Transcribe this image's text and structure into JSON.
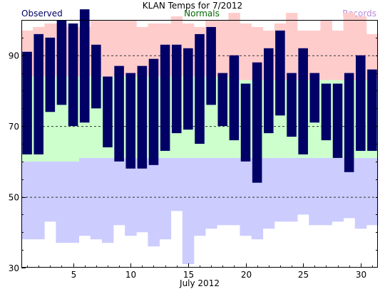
{
  "chart_data": {
    "type": "bar",
    "title": "KLAN Temps for 7/2012",
    "legend": {
      "observed": "Observed",
      "normals": "Normals",
      "records": "Records",
      "placement": "top"
    },
    "xlabel": "July 2012",
    "x_ticks": [
      "5",
      "10",
      "15",
      "20",
      "25",
      "30"
    ],
    "y_ticks": [
      "30",
      "50",
      "70",
      "90"
    ],
    "ylim": [
      30,
      100
    ],
    "xlim": [
      0.5,
      31.5
    ],
    "grid_y": [
      50,
      70,
      90
    ],
    "colors": {
      "observed": "#000066",
      "normal": "#ccffcc",
      "record_high": "#ffcccc",
      "record_low": "#ccccff"
    },
    "days": [
      1,
      2,
      3,
      4,
      5,
      6,
      7,
      8,
      9,
      10,
      11,
      12,
      13,
      14,
      15,
      16,
      17,
      18,
      19,
      20,
      21,
      22,
      23,
      24,
      25,
      26,
      27,
      28,
      29,
      30,
      31
    ],
    "series": [
      {
        "name": "Observed",
        "high": [
          91,
          96,
          95,
          100,
          99,
          103,
          93,
          84,
          87,
          85,
          87,
          89,
          93,
          93,
          92,
          96,
          98,
          85,
          90,
          82,
          88,
          92,
          97,
          85,
          92,
          85,
          82,
          82,
          85,
          90,
          86
        ],
        "low": [
          62,
          62,
          74,
          76,
          70,
          71,
          75,
          64,
          60,
          58,
          58,
          59,
          63,
          68,
          69,
          65,
          76,
          70,
          66,
          60,
          54,
          68,
          73,
          67,
          62,
          71,
          66,
          61,
          57,
          63,
          63
        ]
      },
      {
        "name": "Normals",
        "high": [
          84,
          84,
          84,
          84,
          84,
          84,
          84,
          84,
          84,
          84,
          84,
          84,
          84,
          84,
          84,
          84,
          84,
          84,
          83,
          83,
          83,
          83,
          83,
          83,
          83,
          83,
          83,
          83,
          83,
          83,
          83
        ],
        "low": [
          60,
          60,
          60,
          60,
          60,
          61,
          61,
          61,
          61,
          61,
          61,
          61,
          61,
          61,
          61,
          61,
          61,
          61,
          61,
          61,
          61,
          61,
          61,
          61,
          61,
          61,
          61,
          61,
          61,
          61,
          61
        ]
      },
      {
        "name": "Records",
        "high": [
          97,
          98,
          99,
          99,
          98,
          98,
          100,
          100,
          100,
          100,
          98,
          99,
          99,
          101,
          99,
          98,
          100,
          100,
          102,
          99,
          98,
          97,
          99,
          102,
          97,
          97,
          100,
          97,
          102,
          101,
          96
        ],
        "low": [
          38,
          38,
          43,
          37,
          37,
          39,
          38,
          37,
          42,
          39,
          40,
          36,
          38,
          46,
          31,
          39,
          41,
          42,
          42,
          39,
          38,
          41,
          43,
          43,
          45,
          42,
          42,
          43,
          44,
          41,
          42
        ]
      }
    ]
  }
}
